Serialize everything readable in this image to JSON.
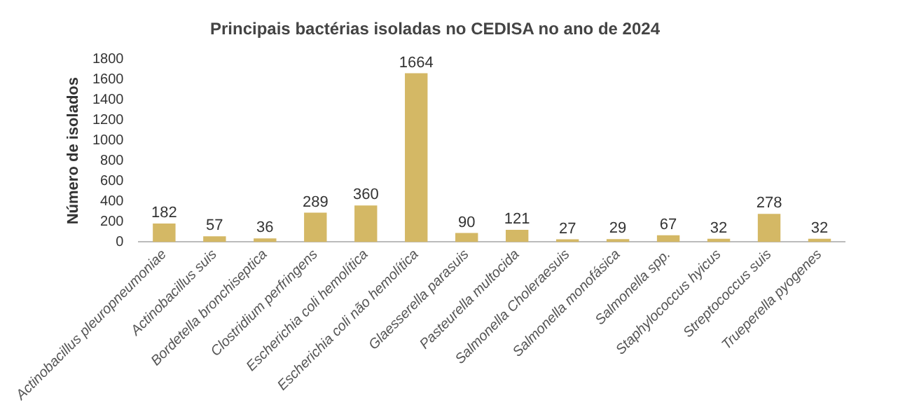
{
  "chart_data": {
    "type": "bar",
    "title": "Principais bactérias isoladas no CEDISA no ano de 2024",
    "ylabel": "Número de isolados",
    "categories": [
      "Actinobacillus pleuropneumoniae",
      "Actinobacillus suis",
      "Bordetella bronchiseptica",
      "Clostridium perfringens",
      "Escherichia coli hemolítica",
      "Escherichia coli não hemolítica",
      "Glaesserella parasuis",
      "Pasteurella multocida",
      "Salmonella Choleraesuis",
      "Salmonella monofásica",
      "Salmonella spp.",
      "Staphylococcus hyicus",
      "Streptococcus suis",
      "Trueperella pyogenes"
    ],
    "values": [
      182,
      57,
      36,
      289,
      360,
      1664,
      90,
      121,
      27,
      29,
      67,
      32,
      278,
      32
    ],
    "color": "#d4b865",
    "ylim": [
      0,
      1800
    ],
    "yticks": [
      0,
      200,
      400,
      600,
      800,
      1000,
      1200,
      1400,
      1600,
      1800
    ],
    "grid": false,
    "data_labels": true
  }
}
